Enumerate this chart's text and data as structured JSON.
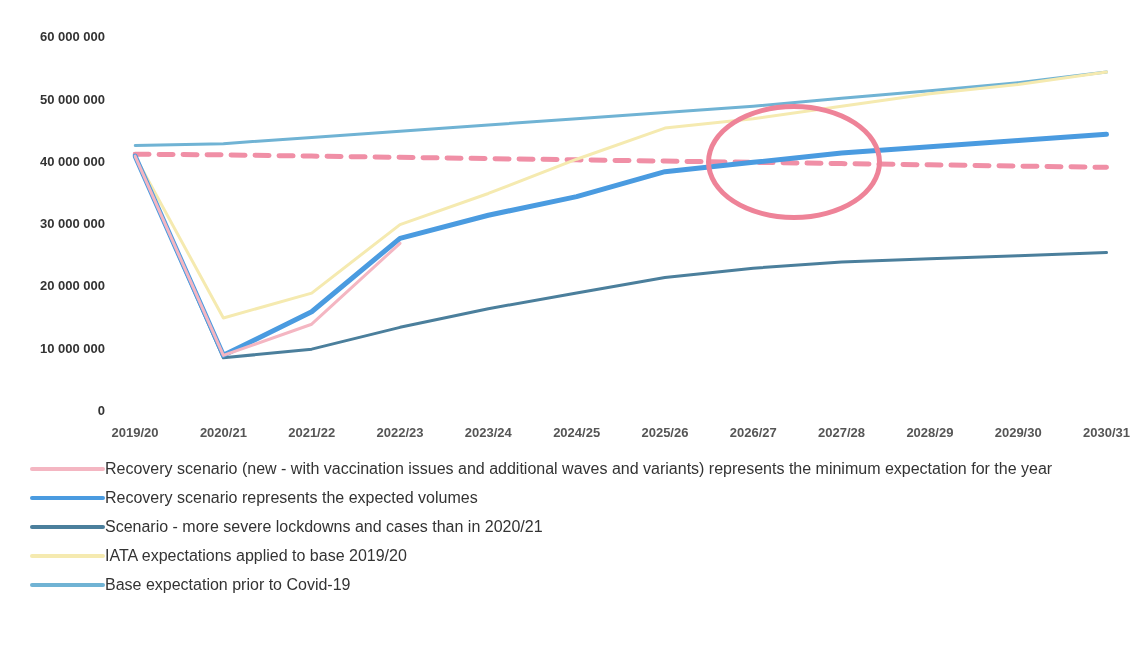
{
  "chart_data": {
    "type": "line",
    "categories": [
      "2019/20",
      "2020/21",
      "2021/22",
      "2022/23",
      "2023/24",
      "2024/25",
      "2025/26",
      "2026/27",
      "2027/28",
      "2028/29",
      "2029/30",
      "2030/31"
    ],
    "ylim": [
      0,
      60000000
    ],
    "yticks": [
      0,
      {
        "value": 10000000,
        "label": "10 000 000"
      },
      {
        "value": 20000000,
        "label": "20 000 000"
      },
      {
        "value": 30000000,
        "label": "30 000 000"
      },
      {
        "value": 40000000,
        "label": "40 000 000"
      },
      {
        "value": 50000000,
        "label": "50 000 000"
      },
      {
        "value": 60000000,
        "label": "60 000 000"
      }
    ],
    "grid": false,
    "legend": "bottom",
    "marker": "none",
    "series": [
      {
        "name": "Recovery scenario (new - with vaccination issues and additional waves and variants) represents the minimum expectation for the year",
        "color": "#f4b6c2",
        "values": [
          41000000,
          9000000,
          14000000,
          27000000,
          null,
          null,
          null,
          null,
          null,
          null,
          null,
          null
        ]
      },
      {
        "name": "Recovery scenario represents the expected volumes",
        "color": "#4a9be0",
        "values": [
          41000000,
          9000000,
          16000000,
          27800000,
          31500000,
          34500000,
          38500000,
          40000000,
          41500000,
          42500000,
          43500000,
          44500000
        ]
      },
      {
        "name": "Scenario - more severe lockdowns and cases than in 2020/21",
        "color": "#4b7f9c",
        "values": [
          41000000,
          8600000,
          10000000,
          13500000,
          16500000,
          19000000,
          21500000,
          23000000,
          24000000,
          24500000,
          25000000,
          25500000
        ]
      },
      {
        "name": "IATA expectations applied to base 2019/20",
        "color": "#f5eab0",
        "values": [
          41000000,
          15000000,
          19000000,
          30000000,
          35000000,
          40500000,
          45500000,
          47000000,
          49000000,
          51000000,
          52500000,
          54500000
        ]
      },
      {
        "name": "Base expectation prior to Covid-19",
        "color": "#70b3d4",
        "values": [
          42700000,
          43000000,
          44000000,
          45000000,
          46000000,
          47000000,
          48000000,
          49000000,
          50300000,
          51500000,
          52800000,
          54500000
        ]
      },
      {
        "color": "#f08fa6",
        "line_style": "dashed",
        "values": [
          41300000,
          41200000,
          41000000,
          40800000,
          40600000,
          40400000,
          40200000,
          40000000,
          39800000,
          39600000,
          39400000,
          39200000
        ]
      }
    ]
  }
}
